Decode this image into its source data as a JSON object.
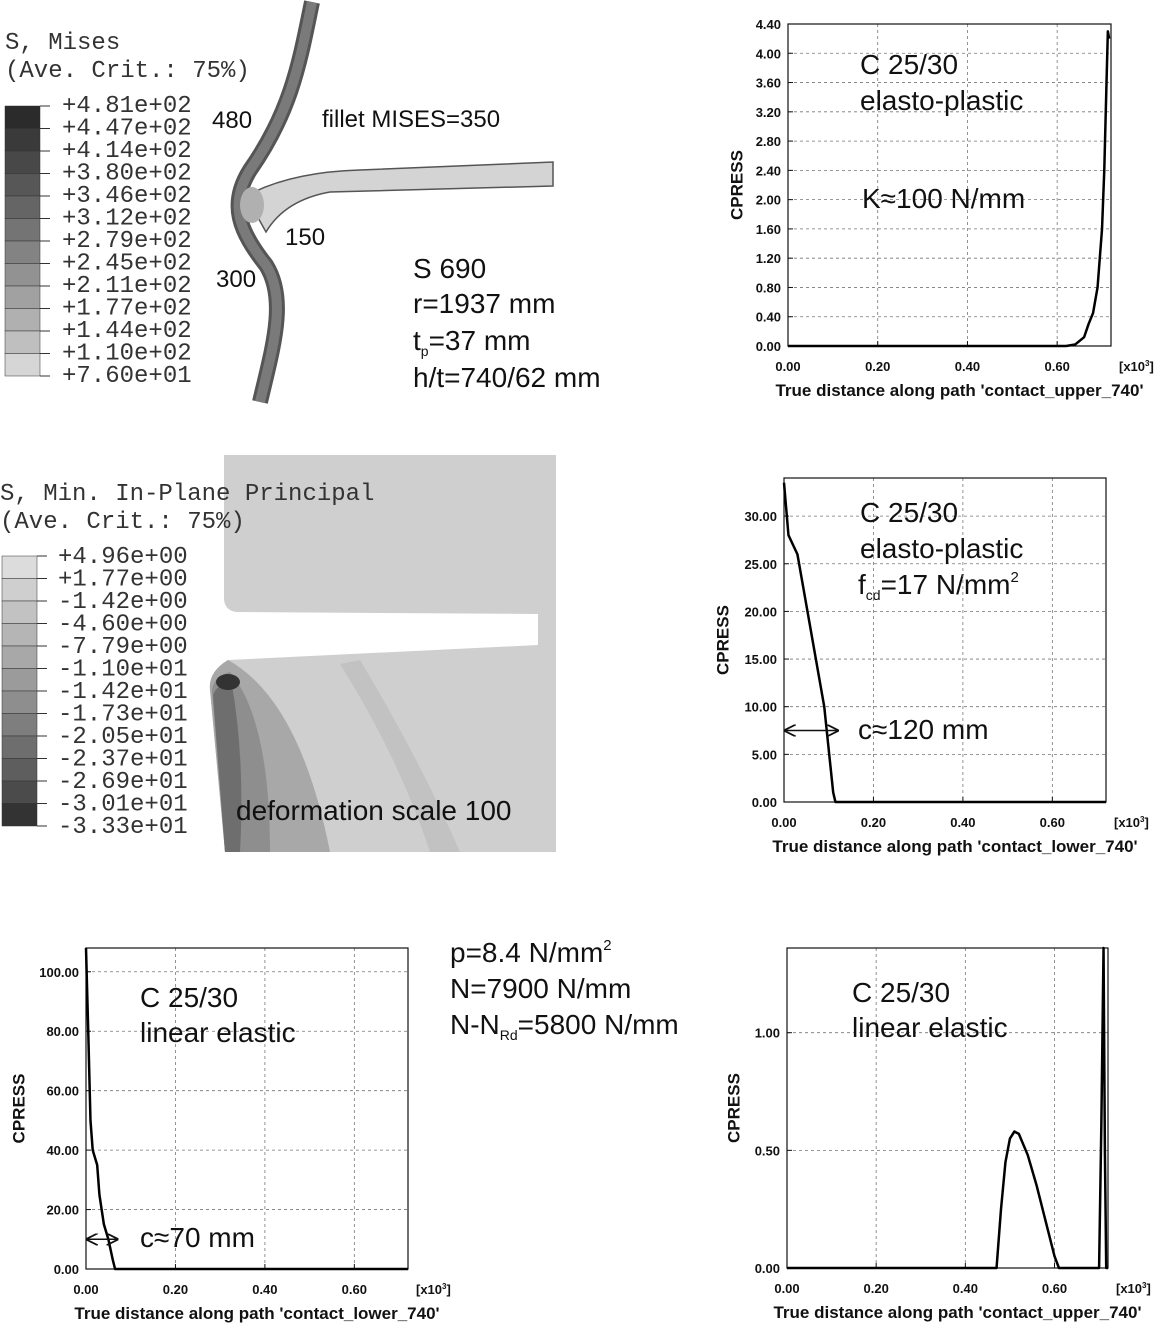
{
  "contour_plots": [
    {
      "title_lines": [
        "S, Mises",
        "(Ave. Crit.: 75%)"
      ],
      "legend_labels": [
        "+4.81e+02",
        "+4.47e+02",
        "+4.14e+02",
        "+3.80e+02",
        "+3.46e+02",
        "+3.12e+02",
        "+2.79e+02",
        "+2.45e+02",
        "+2.11e+02",
        "+1.77e+02",
        "+1.44e+02",
        "+1.10e+02",
        "+7.60e+01"
      ],
      "legend_colors": [
        "#2b2b2b",
        "#3a3a3a",
        "#484848",
        "#575757",
        "#656565",
        "#747474",
        "#838383",
        "#929292",
        "#a1a1a1",
        "#b0b0b0",
        "#bfbfbf",
        "#d6d6d6"
      ],
      "annotations": [
        "480",
        "fillet MISES=350",
        "150",
        "300",
        "S 690",
        "r=1937 mm",
        [
          "t",
          "p",
          "=37 mm"
        ],
        "h/t=740/62 mm"
      ]
    },
    {
      "title_lines": [
        "S, Min. In-Plane Principal",
        "(Ave. Crit.: 75%)"
      ],
      "legend_labels": [
        "+4.96e+00",
        "+1.77e+00",
        "-1.42e+00",
        "-4.60e+00",
        "-7.79e+00",
        "-1.10e+01",
        "-1.42e+01",
        "-1.73e+01",
        "-2.05e+01",
        "-2.37e+01",
        "-2.69e+01",
        "-3.01e+01",
        "-3.33e+01"
      ],
      "legend_colors": [
        "#dcdcdc",
        "#cfcfcf",
        "#c2c2c2",
        "#b5b5b5",
        "#a8a8a8",
        "#9b9b9b",
        "#8e8e8e",
        "#7e7e7e",
        "#6e6e6e",
        "#5e5e5e",
        "#4b4b4b",
        "#333333"
      ],
      "annotations": [
        "deformation scale 100"
      ]
    }
  ],
  "notes": [
    [
      "p=8.4 N/mm",
      "2"
    ],
    [
      "N=7900 N/mm"
    ],
    [
      "N-N",
      "Rd",
      "=5800 N/mm"
    ]
  ],
  "chart_data": [
    {
      "type": "line",
      "ylabel": "CPRESS",
      "xlabel": "True distance along path 'contact_upper_740'",
      "x_multiplier": [
        "[x10",
        "3",
        "]"
      ],
      "annotations": [
        "C 25/30",
        "elasto-plastic",
        "K≈100 N/mm"
      ],
      "x": [
        0,
        0.62,
        0.64,
        0.66,
        0.67,
        0.68,
        0.69,
        0.695,
        0.7,
        0.705,
        0.71,
        0.713,
        0.716
      ],
      "values": [
        0,
        0,
        0.02,
        0.12,
        0.3,
        0.45,
        0.8,
        1.2,
        1.6,
        2.4,
        3.6,
        4.3,
        4.2
      ],
      "color": "#000000",
      "grid": true,
      "xlim": [
        0,
        0.72
      ],
      "xticks": [
        {
          "value": 0,
          "label": "0.00"
        },
        {
          "value": 0.2,
          "label": "0.20"
        },
        {
          "value": 0.4,
          "label": "0.40"
        },
        {
          "value": 0.6,
          "label": "0.60"
        }
      ],
      "ylim": [
        0,
        4.4
      ],
      "yticks": [
        {
          "value": 0,
          "label": "0.00"
        },
        {
          "value": 0.4,
          "label": "0.40"
        },
        {
          "value": 0.8,
          "label": "0.80"
        },
        {
          "value": 1.2,
          "label": "1.20"
        },
        {
          "value": 1.6,
          "label": "1.60"
        },
        {
          "value": 2,
          "label": "2.00"
        },
        {
          "value": 2.4,
          "label": "2.40"
        },
        {
          "value": 2.8,
          "label": "2.80"
        },
        {
          "value": 3.2,
          "label": "3.20"
        },
        {
          "value": 3.6,
          "label": "3.60"
        },
        {
          "value": 4,
          "label": "4.00"
        },
        {
          "value": 4.4,
          "label": "4.40"
        }
      ]
    },
    {
      "type": "line",
      "ylabel": "CPRESS",
      "xlabel": "True distance along path 'contact_lower_740'",
      "x_multiplier": [
        "[x10",
        "3",
        "]"
      ],
      "annotations": [
        "C 25/30",
        "elasto-plastic",
        [
          "f",
          "cd",
          "=17 N/mm",
          "2"
        ],
        "c≈120 mm"
      ],
      "x": [
        0,
        0.01,
        0.03,
        0.06,
        0.09,
        0.11,
        0.115,
        0.72
      ],
      "values": [
        33.5,
        28,
        26,
        18,
        10,
        1,
        0,
        0
      ],
      "color": "#000000",
      "grid": true,
      "xlim": [
        0,
        0.72
      ],
      "xticks": [
        {
          "value": 0,
          "label": "0.00"
        },
        {
          "value": 0.2,
          "label": "0.20"
        },
        {
          "value": 0.4,
          "label": "0.40"
        },
        {
          "value": 0.6,
          "label": "0.60"
        }
      ],
      "ylim": [
        0,
        34
      ],
      "yticks": [
        {
          "value": 0,
          "label": "0.00"
        },
        {
          "value": 5,
          "label": "5.00"
        },
        {
          "value": 10,
          "label": "10.00"
        },
        {
          "value": 15,
          "label": "15.00"
        },
        {
          "value": 20,
          "label": "20.00"
        },
        {
          "value": 25,
          "label": "25.00"
        },
        {
          "value": 30,
          "label": "30.00"
        }
      ]
    },
    {
      "type": "line",
      "ylabel": "CPRESS",
      "xlabel": "True distance along path 'contact_lower_740'",
      "x_multiplier": [
        "[x10",
        "3",
        "]"
      ],
      "annotations": [
        "C 25/30",
        "linear elastic",
        "c≈70 mm"
      ],
      "x": [
        0,
        0.005,
        0.01,
        0.015,
        0.025,
        0.03,
        0.04,
        0.05,
        0.06,
        0.065,
        0.72
      ],
      "values": [
        108,
        80,
        50,
        40,
        35,
        25,
        15,
        10,
        3,
        0,
        0
      ],
      "color": "#000000",
      "grid": true,
      "xlim": [
        0,
        0.72
      ],
      "xticks": [
        {
          "value": 0,
          "label": "0.00"
        },
        {
          "value": 0.2,
          "label": "0.20"
        },
        {
          "value": 0.4,
          "label": "0.40"
        },
        {
          "value": 0.6,
          "label": "0.60"
        }
      ],
      "ylim": [
        0,
        108
      ],
      "yticks": [
        {
          "value": 0,
          "label": "0.00"
        },
        {
          "value": 20,
          "label": "20.00"
        },
        {
          "value": 40,
          "label": "40.00"
        },
        {
          "value": 60,
          "label": "60.00"
        },
        {
          "value": 80,
          "label": "80.00"
        },
        {
          "value": 100,
          "label": "100.00"
        }
      ]
    },
    {
      "type": "line",
      "ylabel": "CPRESS",
      "xlabel": "True distance along path 'contact_upper_740'",
      "x_multiplier": [
        "[x10",
        "3",
        "]"
      ],
      "annotations": [
        "C 25/30",
        "linear elastic"
      ],
      "x": [
        0,
        0.47,
        0.48,
        0.49,
        0.5,
        0.51,
        0.52,
        0.54,
        0.56,
        0.58,
        0.6,
        0.61,
        0.7,
        0.705,
        0.71,
        0.713,
        0.716,
        0.72
      ],
      "values": [
        0,
        0,
        0.25,
        0.45,
        0.55,
        0.58,
        0.57,
        0.48,
        0.35,
        0.2,
        0.05,
        0,
        0,
        0.6,
        1.36,
        0.5,
        0,
        0
      ],
      "color": "#000000",
      "grid": true,
      "xlim": [
        0,
        0.72
      ],
      "xticks": [
        {
          "value": 0,
          "label": "0.00"
        },
        {
          "value": 0.2,
          "label": "0.20"
        },
        {
          "value": 0.4,
          "label": "0.40"
        },
        {
          "value": 0.6,
          "label": "0.60"
        }
      ],
      "ylim": [
        0,
        1.36
      ],
      "yticks": [
        {
          "value": 0,
          "label": "0.00"
        },
        {
          "value": 0.5,
          "label": "0.50"
        },
        {
          "value": 1,
          "label": "1.00"
        }
      ]
    }
  ]
}
